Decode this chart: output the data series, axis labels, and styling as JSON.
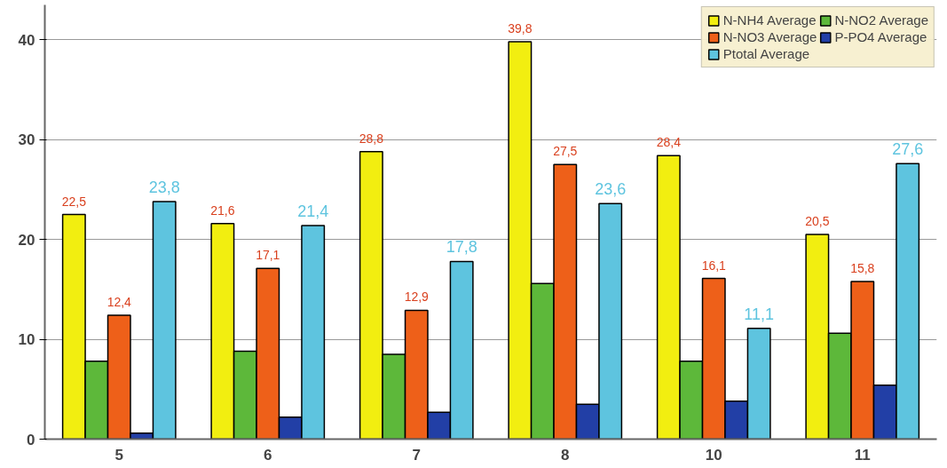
{
  "chart_data": {
    "type": "bar",
    "categories": [
      "5",
      "6",
      "7",
      "8",
      "10",
      "11"
    ],
    "series": [
      {
        "name": "N-NH4 Average",
        "color": "#f2ee10",
        "values": [
          22.5,
          21.6,
          28.8,
          39.8,
          28.4,
          20.5
        ],
        "value_labels": [
          "22,5",
          "21,6",
          "28,8",
          "39,8",
          "28,4",
          "20,5"
        ]
      },
      {
        "name": "N-NO2 Average",
        "color": "#5db83a",
        "values": [
          7.8,
          8.8,
          8.5,
          15.6,
          7.8,
          10.6
        ]
      },
      {
        "name": "N-NO3 Average",
        "color": "#ee6019",
        "values": [
          12.4,
          17.1,
          12.9,
          27.5,
          16.1,
          15.8
        ],
        "value_labels": [
          "12,4",
          "17,1",
          "12,9",
          "27,5",
          "16,1",
          "15,8"
        ]
      },
      {
        "name": "P-PO4 Average",
        "color": "#223fa6",
        "values": [
          0.6,
          2.2,
          2.7,
          3.5,
          3.8,
          5.4
        ]
      },
      {
        "name": "Ptotal Average",
        "color": "#5ec4df",
        "values": [
          23.8,
          21.4,
          17.8,
          23.6,
          11.1,
          27.6
        ],
        "value_labels": [
          "23,8",
          "21,4",
          "17,8",
          "23,6",
          "11,1",
          "27,6"
        ]
      }
    ],
    "ylim": [
      0,
      43.5
    ],
    "yticks": [
      0,
      10,
      20,
      30,
      40
    ],
    "grid": "y",
    "legend": "top right"
  }
}
